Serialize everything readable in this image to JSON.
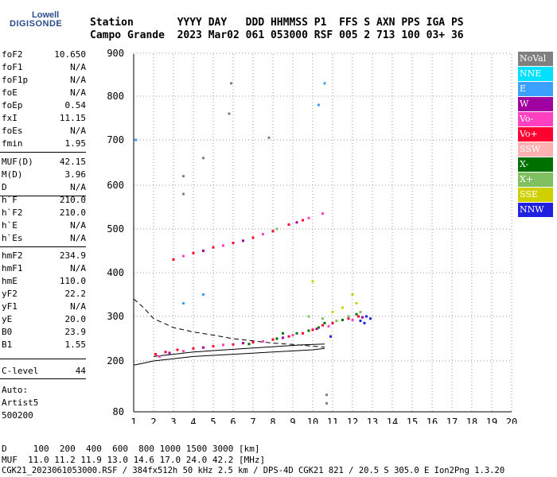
{
  "logo": {
    "line1": "Lowell",
    "line2": "DIGISONDE"
  },
  "header": {
    "row1": "Station       YYYY DAY   DDD HHMMSS P1  FFS S AXN PPS IGA PS",
    "row2": "Campo Grande  2023 Mar02 061 053000 RSF 005 2 713 100 03+ 36"
  },
  "params": [
    {
      "name": "foF2",
      "value": "10.650"
    },
    {
      "name": "foF1",
      "value": "N/A"
    },
    {
      "name": "foF1p",
      "value": "N/A"
    },
    {
      "name": "foE",
      "value": "N/A"
    },
    {
      "name": "foEp",
      "value": "0.54"
    },
    {
      "name": "fxI",
      "value": "11.15"
    },
    {
      "name": "foEs",
      "value": "N/A"
    },
    {
      "name": "fmin",
      "value": "1.95"
    },
    {
      "name": "MUF(D)",
      "value": "42.15"
    },
    {
      "name": "M(D)",
      "value": "3.96"
    },
    {
      "name": "D",
      "value": "N/A"
    },
    {
      "name": "h`F",
      "value": "210.0"
    },
    {
      "name": "h`F2",
      "value": "210.0"
    },
    {
      "name": "h`E",
      "value": "N/A"
    },
    {
      "name": "h`Es",
      "value": "N/A"
    },
    {
      "name": "hmF2",
      "value": "234.9"
    },
    {
      "name": "hmF1",
      "value": "N/A"
    },
    {
      "name": "hmE",
      "value": "110.0"
    },
    {
      "name": "yF2",
      "value": "22.2"
    },
    {
      "name": "yF1",
      "value": "N/A"
    },
    {
      "name": "yE",
      "value": "20.0"
    },
    {
      "name": "B0",
      "value": "23.9"
    },
    {
      "name": "B1",
      "value": "1.55"
    },
    {
      "name": "C-level",
      "value": "44"
    }
  ],
  "auto": {
    "line1": "Auto:",
    "line2": "Artist5",
    "line3": "500200"
  },
  "legend": [
    {
      "label": "NoVal",
      "color": "#808080"
    },
    {
      "label": "NNE",
      "color": "#00e0ff"
    },
    {
      "label": "E",
      "color": "#3ca0ff"
    },
    {
      "label": "W",
      "color": "#a000a0"
    },
    {
      "label": "Vo-",
      "color": "#ff40c0"
    },
    {
      "label": "Vo+",
      "color": "#ff0030"
    },
    {
      "label": "SSW",
      "color": "#ffb0b0"
    },
    {
      "label": "X-",
      "color": "#007000"
    },
    {
      "label": "X+",
      "color": "#80c060"
    },
    {
      "label": "SSE",
      "color": "#d0d000"
    },
    {
      "label": "NNW",
      "color": "#2020e0"
    }
  ],
  "footer": {
    "line1": "D     100  200  400  600  800 1000 1500 3000 [km]",
    "line2": "MUF  11.0 11.2 11.9 13.0 14.6 17.0 24.0 42.2 [MHz]",
    "line3": "CGK21_2023061053000.RSF / 384fx512h 50 kHz 2.5 km / DPS-4D CGK21 821 / 20.5 S 305.0 E Ion2Png 1.3.20"
  },
  "chart_data": {
    "type": "scatter",
    "xlim": [
      1,
      20
    ],
    "ylim": [
      80,
      900
    ],
    "x_ticks": [
      1,
      2,
      3,
      4,
      5,
      6,
      7,
      8,
      9,
      10,
      11,
      12,
      13,
      14,
      15,
      16,
      17,
      18,
      19,
      20
    ],
    "y_ticks": [
      80,
      200,
      300,
      400,
      500,
      600,
      700,
      800,
      900
    ],
    "grid": "dotted",
    "legend_position": "right",
    "series": [
      {
        "name": "Vo+",
        "color": "#ff0030",
        "points": [
          [
            2.1,
            215
          ],
          [
            2.6,
            220
          ],
          [
            3.2,
            225
          ],
          [
            4.0,
            228
          ],
          [
            5.0,
            233
          ],
          [
            6.0,
            237
          ],
          [
            7.0,
            242
          ],
          [
            8.0,
            248
          ],
          [
            8.8,
            255
          ],
          [
            9.5,
            262
          ],
          [
            10.0,
            270
          ],
          [
            10.5,
            280
          ],
          [
            11.0,
            285
          ],
          [
            11.8,
            295
          ],
          [
            12.3,
            300
          ],
          [
            3.0,
            430
          ],
          [
            4.0,
            445
          ],
          [
            5.0,
            458
          ],
          [
            6.0,
            468
          ],
          [
            7.0,
            480
          ],
          [
            8.0,
            495
          ],
          [
            8.8,
            510
          ],
          [
            9.5,
            520
          ]
        ]
      },
      {
        "name": "Vo-",
        "color": "#ff40c0",
        "points": [
          [
            2.3,
            210
          ],
          [
            3.5,
            222
          ],
          [
            5.5,
            236
          ],
          [
            7.5,
            244
          ],
          [
            9.0,
            258
          ],
          [
            10.8,
            278
          ],
          [
            12.0,
            292
          ],
          [
            3.5,
            438
          ],
          [
            5.5,
            462
          ],
          [
            7.5,
            488
          ],
          [
            9.8,
            525
          ],
          [
            10.5,
            535
          ]
        ]
      },
      {
        "name": "W",
        "color": "#a000a0",
        "points": [
          [
            2.8,
            218
          ],
          [
            4.5,
            230
          ],
          [
            6.5,
            240
          ],
          [
            8.5,
            252
          ],
          [
            10.2,
            272
          ],
          [
            12.5,
            298
          ],
          [
            4.5,
            450
          ],
          [
            6.5,
            473
          ],
          [
            9.2,
            515
          ]
        ]
      },
      {
        "name": "X-",
        "color": "#007000",
        "points": [
          [
            6.8,
            238
          ],
          [
            8.2,
            250
          ],
          [
            9.2,
            262
          ],
          [
            9.8,
            268
          ],
          [
            10.6,
            285
          ],
          [
            11.5,
            292
          ],
          [
            12.2,
            305
          ],
          [
            8.5,
            262
          ],
          [
            10.3,
            275
          ]
        ]
      },
      {
        "name": "X+",
        "color": "#80c060",
        "points": [
          [
            9.8,
            300
          ],
          [
            10.5,
            295
          ],
          [
            11.2,
            290
          ],
          [
            11.8,
            300
          ],
          [
            12.4,
            310
          ],
          [
            8.2,
            500
          ]
        ]
      },
      {
        "name": "NNW",
        "color": "#2020e0",
        "points": [
          [
            12.4,
            290
          ],
          [
            12.7,
            300
          ],
          [
            12.9,
            295
          ],
          [
            12.6,
            285
          ],
          [
            10.9,
            255
          ]
        ]
      },
      {
        "name": "SSE",
        "color": "#d0d000",
        "points": [
          [
            10.0,
            380
          ],
          [
            11.0,
            310
          ],
          [
            11.5,
            320
          ],
          [
            12.2,
            330
          ],
          [
            12.0,
            350
          ]
        ]
      },
      {
        "name": "E",
        "color": "#3ca0ff",
        "points": [
          [
            3.5,
            330
          ],
          [
            4.5,
            350
          ],
          [
            10.6,
            830
          ],
          [
            10.3,
            780
          ],
          [
            1.1,
            700
          ]
        ]
      },
      {
        "name": "NoVal",
        "color": "#808080",
        "points": [
          [
            3.5,
            580
          ],
          [
            3.5,
            620
          ],
          [
            5.9,
            830
          ],
          [
            5.8,
            760
          ],
          [
            10.7,
            120
          ],
          [
            10.7,
            100
          ],
          [
            7.8,
            705
          ],
          [
            4.5,
            660
          ]
        ]
      }
    ],
    "trace_curves": [
      {
        "style": "dashed",
        "points": [
          [
            1,
            340
          ],
          [
            1.5,
            320
          ],
          [
            2,
            295
          ],
          [
            3,
            275
          ],
          [
            4,
            265
          ],
          [
            5,
            258
          ],
          [
            6,
            250
          ],
          [
            7,
            245
          ],
          [
            8,
            240
          ],
          [
            9,
            237
          ],
          [
            10,
            233
          ],
          [
            10.6,
            231
          ]
        ]
      },
      {
        "style": "solid",
        "points": [
          [
            1,
            190
          ],
          [
            1.5,
            195
          ],
          [
            2,
            200
          ],
          [
            3,
            205
          ],
          [
            4,
            210
          ],
          [
            6,
            215
          ],
          [
            8,
            220
          ],
          [
            10,
            225
          ],
          [
            10.6,
            228
          ]
        ]
      },
      {
        "style": "solid",
        "points": [
          [
            2,
            210
          ],
          [
            3,
            215
          ],
          [
            4,
            220
          ],
          [
            6,
            226
          ],
          [
            8,
            232
          ],
          [
            9.5,
            236
          ],
          [
            10.6,
            238
          ]
        ]
      }
    ]
  }
}
